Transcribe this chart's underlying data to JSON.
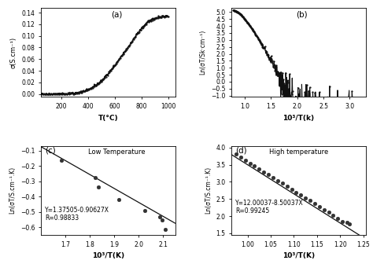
{
  "panel_a": {
    "label": "(a)",
    "xlabel": "T(°C)",
    "ylabel": "σ(S.cm⁻¹)",
    "xlim": [
      50,
      1050
    ],
    "ylim": [
      -0.005,
      0.148
    ],
    "yticks": [
      0.0,
      0.02,
      0.04,
      0.06,
      0.08,
      0.1,
      0.12,
      0.14
    ],
    "xticks": [
      200,
      400,
      600,
      800,
      1000
    ]
  },
  "panel_b": {
    "label": "(b)",
    "xlabel": "10³/T(k)",
    "ylabel": "Ln(σT/Sk·cm⁻¹)",
    "xlim": [
      0.75,
      3.3
    ],
    "ylim": [
      -1.1,
      5.3
    ],
    "yticks": [
      -1.0,
      -0.5,
      0.0,
      0.5,
      1.0,
      1.5,
      2.0,
      2.5,
      3.0,
      3.5,
      4.0,
      4.5,
      5.0
    ],
    "xticks": [
      1.0,
      1.5,
      2.0,
      2.5,
      3.0
    ]
  },
  "panel_c": {
    "label": "(c)",
    "xlabel": "10³/T(K)",
    "ylabel": "Ln(σT/S.cm⁻¹.K)",
    "xlim": [
      1.6,
      2.15
    ],
    "ylim": [
      -0.65,
      -0.07
    ],
    "xticks": [
      1.7,
      1.8,
      1.9,
      2.0,
      2.1
    ],
    "yticks": [
      -0.6,
      -0.5,
      -0.4,
      -0.3,
      -0.2,
      -0.1
    ],
    "annotation": "Y=1.37505-0.90627X\nR=0.98833",
    "text_label": "Low Temperature",
    "slope": -0.90627,
    "intercept": 1.37505,
    "data_x": [
      1.685,
      1.822,
      1.834,
      1.918,
      2.025,
      2.088,
      2.095,
      2.108
    ],
    "data_y": [
      -0.165,
      -0.275,
      -0.34,
      -0.42,
      -0.49,
      -0.53,
      -0.55,
      -0.615
    ]
  },
  "panel_d": {
    "label": "(d)",
    "xlabel": "10³/T(K)",
    "ylabel": "Ln(σT/S.cm⁻¹.K)",
    "xlim": [
      0.965,
      1.255
    ],
    "ylim": [
      1.45,
      4.05
    ],
    "xticks": [
      1.0,
      1.05,
      1.1,
      1.15,
      1.2,
      1.25
    ],
    "yticks": [
      1.5,
      2.0,
      2.5,
      3.0,
      3.5,
      4.0
    ],
    "annotation": "Y=12.00037-8.50037X\nR=0.99245",
    "text_label": "High temperature",
    "slope": -8.50037,
    "intercept": 12.00037,
    "data_x": [
      0.975,
      0.985,
      0.995,
      1.005,
      1.015,
      1.025,
      1.035,
      1.045,
      1.055,
      1.065,
      1.075,
      1.085,
      1.095,
      1.105,
      1.115,
      1.125,
      1.135,
      1.145,
      1.155,
      1.165,
      1.175,
      1.185,
      1.195,
      1.205,
      1.215,
      1.22
    ],
    "data_y": [
      3.81,
      3.72,
      3.63,
      3.55,
      3.47,
      3.38,
      3.29,
      3.21,
      3.13,
      3.04,
      2.96,
      2.87,
      2.79,
      2.7,
      2.62,
      2.53,
      2.45,
      2.36,
      2.28,
      2.19,
      2.11,
      2.02,
      1.94,
      1.85,
      1.82,
      1.77
    ]
  },
  "bg_color": "#ffffff",
  "line_color": "#111111",
  "marker_color": "#333333"
}
